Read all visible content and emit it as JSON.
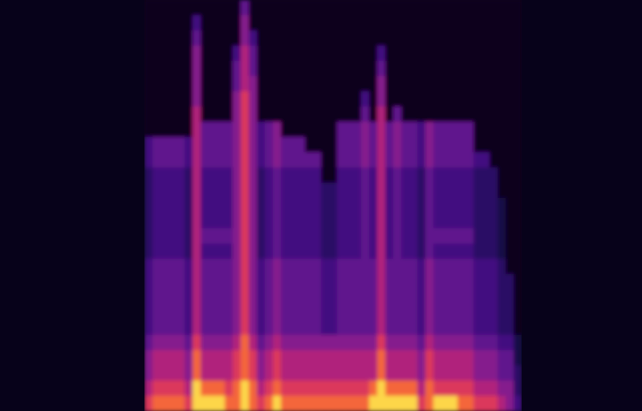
{
  "chart_data": {
    "type": "heatmap",
    "tick_labels": false,
    "zlim": [
      0,
      9
    ],
    "cells": [
      [
        0,
        0,
        0,
        0,
        0,
        0,
        0,
        0,
        0,
        0,
        0,
        0,
        4,
        0,
        0,
        0,
        0,
        0,
        0,
        0,
        0,
        0,
        0,
        0,
        0,
        0,
        0,
        0,
        0,
        0,
        0,
        0,
        0,
        0,
        0,
        0,
        0,
        0,
        0,
        0,
        0,
        0,
        0,
        0,
        0,
        0,
        0
      ],
      [
        0,
        0,
        0,
        0,
        0,
        0,
        3,
        0,
        0,
        0,
        0,
        0,
        5,
        0,
        0,
        0,
        0,
        0,
        0,
        0,
        0,
        0,
        0,
        0,
        0,
        0,
        0,
        0,
        0,
        0,
        0,
        0,
        0,
        0,
        0,
        0,
        0,
        0,
        0,
        0,
        0,
        0,
        0,
        0,
        0,
        0,
        0
      ],
      [
        0,
        0,
        0,
        0,
        0,
        0,
        4,
        0,
        0,
        0,
        0,
        0,
        5,
        3,
        0,
        0,
        0,
        0,
        0,
        0,
        0,
        0,
        0,
        0,
        0,
        0,
        0,
        0,
        0,
        0,
        0,
        0,
        0,
        0,
        0,
        0,
        0,
        0,
        0,
        0,
        0,
        0,
        0,
        0,
        0,
        0,
        0
      ],
      [
        0,
        0,
        0,
        0,
        0,
        0,
        5,
        0,
        0,
        0,
        0,
        3,
        6,
        4,
        0,
        0,
        0,
        0,
        0,
        0,
        0,
        0,
        0,
        0,
        0,
        0,
        0,
        0,
        0,
        3,
        0,
        0,
        0,
        0,
        0,
        0,
        0,
        0,
        0,
        0,
        0,
        0,
        0,
        0,
        0,
        0,
        0
      ],
      [
        0,
        0,
        0,
        0,
        0,
        0,
        5,
        0,
        0,
        0,
        0,
        4,
        6,
        4,
        0,
        0,
        0,
        0,
        0,
        0,
        0,
        0,
        0,
        0,
        0,
        0,
        0,
        0,
        0,
        4,
        0,
        0,
        0,
        0,
        0,
        0,
        0,
        0,
        0,
        0,
        0,
        0,
        0,
        0,
        0,
        0,
        0
      ],
      [
        0,
        0,
        0,
        0,
        0,
        0,
        5,
        0,
        0,
        0,
        0,
        4,
        6,
        5,
        0,
        0,
        0,
        0,
        0,
        0,
        0,
        0,
        0,
        0,
        0,
        0,
        0,
        0,
        0,
        5,
        0,
        0,
        0,
        0,
        0,
        0,
        0,
        0,
        0,
        0,
        0,
        0,
        0,
        0,
        0,
        0,
        0
      ],
      [
        0,
        0,
        0,
        0,
        0,
        0,
        5,
        0,
        0,
        0,
        0,
        5,
        7,
        5,
        0,
        0,
        0,
        0,
        0,
        0,
        0,
        0,
        0,
        0,
        0,
        0,
        0,
        3,
        0,
        5,
        0,
        0,
        0,
        0,
        0,
        0,
        0,
        0,
        0,
        0,
        0,
        0,
        0,
        0,
        0,
        0,
        0
      ],
      [
        0,
        0,
        0,
        0,
        0,
        0,
        6,
        0,
        0,
        0,
        0,
        5,
        7,
        5,
        0,
        0,
        0,
        0,
        0,
        0,
        0,
        0,
        0,
        0,
        0,
        0,
        0,
        4,
        0,
        6,
        0,
        4,
        0,
        0,
        0,
        0,
        0,
        0,
        0,
        0,
        0,
        0,
        0,
        0,
        0,
        0,
        0
      ],
      [
        0,
        0,
        0,
        0,
        0,
        0,
        6,
        4,
        4,
        4,
        4,
        5,
        7,
        5,
        3,
        4,
        5,
        0,
        0,
        0,
        0,
        0,
        0,
        0,
        4,
        4,
        4,
        5,
        4,
        6,
        4,
        5,
        4,
        4,
        3,
        5,
        4,
        4,
        4,
        4,
        4,
        0,
        0,
        0,
        0,
        0,
        0
      ],
      [
        3,
        4,
        4,
        4,
        4,
        3,
        6,
        4,
        4,
        4,
        4,
        5,
        7,
        5,
        3,
        4,
        5,
        4,
        4,
        4,
        0,
        0,
        0,
        0,
        4,
        4,
        4,
        5,
        4,
        6,
        4,
        5,
        4,
        4,
        3,
        5,
        4,
        4,
        4,
        4,
        4,
        0,
        0,
        0,
        0,
        0,
        0
      ],
      [
        3,
        4,
        4,
        4,
        4,
        3,
        6,
        4,
        4,
        4,
        4,
        5,
        7,
        5,
        3,
        4,
        5,
        4,
        4,
        4,
        4,
        4,
        0,
        0,
        4,
        4,
        4,
        5,
        4,
        6,
        4,
        5,
        4,
        4,
        3,
        5,
        4,
        4,
        4,
        4,
        4,
        3,
        3,
        0,
        0,
        0,
        0
      ],
      [
        2,
        3,
        3,
        3,
        3,
        2,
        6,
        3,
        3,
        3,
        3,
        5,
        7,
        5,
        2,
        3,
        4,
        3,
        3,
        3,
        3,
        3,
        0,
        0,
        3,
        3,
        3,
        4,
        3,
        6,
        3,
        4,
        3,
        3,
        2,
        4,
        3,
        3,
        3,
        3,
        3,
        2,
        2,
        2,
        0,
        0,
        0
      ],
      [
        2,
        3,
        3,
        3,
        3,
        2,
        6,
        3,
        3,
        3,
        3,
        5,
        7,
        5,
        2,
        3,
        4,
        3,
        3,
        3,
        3,
        3,
        2,
        2,
        3,
        3,
        3,
        4,
        3,
        6,
        3,
        4,
        3,
        3,
        2,
        4,
        3,
        3,
        3,
        3,
        3,
        2,
        2,
        2,
        0,
        0,
        0
      ],
      [
        2,
        3,
        3,
        3,
        3,
        2,
        6,
        3,
        3,
        3,
        3,
        5,
        7,
        5,
        2,
        3,
        4,
        3,
        3,
        3,
        3,
        3,
        2,
        2,
        3,
        3,
        3,
        4,
        3,
        6,
        3,
        4,
        3,
        3,
        2,
        4,
        3,
        3,
        3,
        3,
        3,
        2,
        2,
        2,
        1,
        0,
        0
      ],
      [
        2,
        3,
        3,
        3,
        3,
        2,
        6,
        3,
        3,
        3,
        3,
        5,
        7,
        5,
        2,
        3,
        4,
        3,
        3,
        3,
        3,
        3,
        2,
        2,
        3,
        3,
        3,
        4,
        3,
        6,
        3,
        4,
        3,
        3,
        2,
        4,
        3,
        3,
        3,
        3,
        3,
        2,
        2,
        2,
        1,
        0,
        0
      ],
      [
        2,
        3,
        3,
        3,
        3,
        2,
        6,
        4,
        4,
        4,
        4,
        5,
        7,
        5,
        2,
        3,
        4,
        3,
        3,
        3,
        3,
        3,
        2,
        2,
        3,
        3,
        3,
        4,
        3,
        6,
        3,
        4,
        3,
        3,
        2,
        4,
        4,
        4,
        4,
        4,
        4,
        2,
        2,
        2,
        1,
        0,
        0
      ],
      [
        2,
        3,
        3,
        3,
        3,
        2,
        6,
        3,
        3,
        3,
        3,
        5,
        7,
        5,
        2,
        3,
        4,
        3,
        3,
        3,
        3,
        3,
        2,
        2,
        3,
        3,
        3,
        4,
        3,
        6,
        3,
        4,
        3,
        3,
        2,
        4,
        3,
        3,
        3,
        3,
        3,
        2,
        2,
        2,
        1,
        0,
        0
      ],
      [
        3,
        4,
        4,
        4,
        4,
        3,
        6,
        4,
        4,
        4,
        4,
        5,
        7,
        5,
        3,
        4,
        5,
        4,
        4,
        4,
        4,
        4,
        3,
        3,
        4,
        4,
        4,
        4,
        4,
        6,
        4,
        4,
        4,
        4,
        3,
        5,
        4,
        4,
        4,
        4,
        4,
        3,
        3,
        3,
        2,
        0,
        0
      ],
      [
        3,
        4,
        4,
        4,
        4,
        3,
        6,
        4,
        4,
        4,
        4,
        5,
        7,
        5,
        3,
        4,
        5,
        4,
        4,
        4,
        4,
        4,
        3,
        3,
        4,
        4,
        4,
        4,
        4,
        6,
        4,
        4,
        4,
        4,
        3,
        5,
        4,
        4,
        4,
        4,
        4,
        3,
        3,
        3,
        2,
        2,
        0
      ],
      [
        3,
        4,
        4,
        4,
        4,
        3,
        6,
        4,
        4,
        4,
        4,
        5,
        7,
        5,
        3,
        4,
        5,
        4,
        4,
        4,
        4,
        4,
        3,
        3,
        4,
        4,
        4,
        4,
        4,
        6,
        4,
        4,
        4,
        4,
        3,
        5,
        4,
        4,
        4,
        4,
        4,
        3,
        3,
        3,
        2,
        2,
        0
      ],
      [
        3,
        4,
        4,
        4,
        4,
        3,
        6,
        4,
        4,
        4,
        4,
        5,
        7,
        5,
        3,
        4,
        5,
        4,
        4,
        4,
        4,
        4,
        3,
        3,
        4,
        4,
        4,
        4,
        4,
        6,
        4,
        4,
        4,
        4,
        3,
        5,
        4,
        4,
        4,
        4,
        4,
        3,
        3,
        3,
        2,
        2,
        0
      ],
      [
        3,
        4,
        4,
        4,
        4,
        3,
        6,
        4,
        4,
        4,
        4,
        5,
        7,
        5,
        3,
        4,
        5,
        4,
        4,
        4,
        4,
        4,
        3,
        3,
        4,
        4,
        4,
        4,
        4,
        6,
        4,
        4,
        4,
        4,
        3,
        5,
        4,
        4,
        4,
        4,
        4,
        3,
        3,
        3,
        2,
        2,
        0
      ],
      [
        4,
        5,
        5,
        5,
        5,
        4,
        7,
        5,
        5,
        5,
        5,
        6,
        8,
        6,
        4,
        5,
        6,
        5,
        5,
        5,
        5,
        5,
        5,
        5,
        5,
        5,
        5,
        5,
        5,
        7,
        5,
        5,
        5,
        5,
        4,
        6,
        5,
        5,
        5,
        5,
        5,
        4,
        4,
        4,
        3,
        3,
        1
      ],
      [
        5,
        6,
        6,
        6,
        6,
        5,
        8,
        6,
        6,
        6,
        6,
        7,
        8,
        7,
        5,
        6,
        7,
        6,
        6,
        6,
        6,
        6,
        6,
        6,
        6,
        6,
        6,
        6,
        6,
        8,
        6,
        6,
        6,
        6,
        5,
        7,
        6,
        6,
        6,
        6,
        6,
        5,
        5,
        5,
        4,
        4,
        1
      ],
      [
        5,
        6,
        6,
        6,
        6,
        5,
        8,
        6,
        6,
        6,
        6,
        7,
        8,
        7,
        5,
        6,
        7,
        6,
        6,
        6,
        6,
        6,
        6,
        6,
        6,
        6,
        6,
        6,
        6,
        8,
        6,
        6,
        6,
        6,
        5,
        7,
        6,
        6,
        6,
        6,
        6,
        5,
        5,
        5,
        4,
        4,
        2
      ],
      [
        6,
        7,
        7,
        7,
        7,
        6,
        9,
        8,
        8,
        8,
        7,
        8,
        9,
        8,
        6,
        7,
        8,
        7,
        7,
        7,
        7,
        7,
        7,
        7,
        7,
        7,
        7,
        7,
        8,
        9,
        8,
        8,
        8,
        8,
        6,
        8,
        7,
        7,
        7,
        7,
        7,
        6,
        6,
        6,
        5,
        5,
        2
      ],
      [
        7,
        8,
        8,
        8,
        8,
        7,
        9,
        9,
        9,
        9,
        8,
        8,
        9,
        8,
        7,
        8,
        9,
        8,
        8,
        8,
        8,
        8,
        8,
        8,
        8,
        8,
        8,
        8,
        9,
        9,
        9,
        9,
        9,
        9,
        7,
        8,
        9,
        9,
        9,
        8,
        8,
        7,
        7,
        7,
        6,
        5,
        3
      ]
    ]
  }
}
